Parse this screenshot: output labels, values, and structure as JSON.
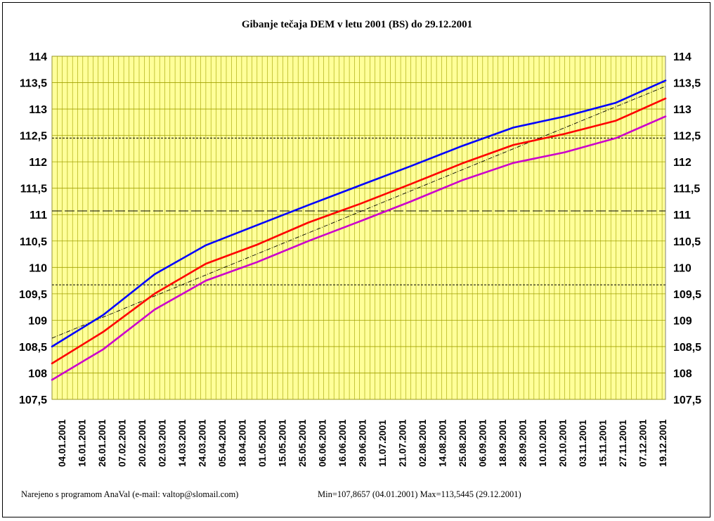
{
  "chart_data": {
    "type": "line",
    "title": "Gibanje tečaja DEM v letu 2001 (BS) do 29.12.2001",
    "xlabel": "",
    "ylabel": "",
    "ylim": [
      107.5,
      114
    ],
    "y_ticks": [
      "107,5",
      "108",
      "108,5",
      "109",
      "109,5",
      "110",
      "110,5",
      "111",
      "111,5",
      "112",
      "112,5",
      "113",
      "113,5",
      "114"
    ],
    "y_tick_values": [
      107.5,
      108,
      108.5,
      109,
      109.5,
      110,
      110.5,
      111,
      111.5,
      112,
      112.5,
      113,
      113.5,
      114
    ],
    "x_range": [
      "2001-01-04",
      "2001-12-29"
    ],
    "x_ticks": [
      "04.01.2001",
      "16.01.2001",
      "26.01.2001",
      "07.02.2001",
      "20.02.2001",
      "02.03.2001",
      "14.03.2001",
      "24.03.2001",
      "05.04.2001",
      "18.04.2001",
      "01.05.2001",
      "15.05.2001",
      "25.05.2001",
      "06.06.2001",
      "16.06.2001",
      "29.06.2001",
      "11.07.2001",
      "21.07.2001",
      "02.08.2001",
      "14.08.2001",
      "25.08.2001",
      "06.09.2001",
      "18.09.2001",
      "28.09.2001",
      "10.10.2001",
      "20.10.2001",
      "03.11.2001",
      "15.11.2001",
      "27.11.2001",
      "07.12.2001",
      "19.12.2001"
    ],
    "grid": true,
    "background_color": "#FFFF99",
    "grid_color": "#A0A000",
    "series": [
      {
        "color": "#0000FF",
        "x": [
          "2001-01-04",
          "2001-02-03",
          "2001-03-05",
          "2001-04-04",
          "2001-05-04",
          "2001-06-03",
          "2001-07-03",
          "2001-08-02",
          "2001-09-01",
          "2001-10-01",
          "2001-10-31",
          "2001-11-30",
          "2001-12-29"
        ],
        "values": [
          108.5,
          109.1,
          109.87,
          110.42,
          110.8,
          111.18,
          111.55,
          111.92,
          112.3,
          112.65,
          112.86,
          113.12,
          113.54
        ]
      },
      {
        "color": "#FF0000",
        "x": [
          "2001-01-04",
          "2001-02-03",
          "2001-03-05",
          "2001-04-04",
          "2001-05-04",
          "2001-06-03",
          "2001-07-03",
          "2001-08-02",
          "2001-09-01",
          "2001-10-01",
          "2001-10-31",
          "2001-11-30",
          "2001-12-29"
        ],
        "values": [
          108.18,
          108.78,
          109.5,
          110.07,
          110.43,
          110.85,
          111.2,
          111.58,
          111.97,
          112.32,
          112.53,
          112.78,
          113.2
        ]
      },
      {
        "color": "#CC00CC",
        "x": [
          "2001-01-04",
          "2001-02-03",
          "2001-03-05",
          "2001-04-04",
          "2001-05-04",
          "2001-06-03",
          "2001-07-03",
          "2001-08-02",
          "2001-09-01",
          "2001-10-01",
          "2001-10-31",
          "2001-11-30",
          "2001-12-29"
        ],
        "values": [
          107.87,
          108.45,
          109.2,
          109.75,
          110.1,
          110.5,
          110.87,
          111.25,
          111.65,
          111.98,
          112.18,
          112.45,
          112.86
        ]
      }
    ],
    "trend_line": {
      "color": "#000000",
      "x": [
        "2001-01-04",
        "2001-12-29"
      ],
      "values": [
        108.66,
        113.43
      ]
    },
    "reference_lines": [
      {
        "style": "dotted",
        "value": 112.45
      },
      {
        "style": "dashed",
        "value": 111.07
      },
      {
        "style": "dotted",
        "value": 109.67
      }
    ]
  },
  "footer": {
    "credit": "Narejeno s programom AnaVal (e-mail: valtop@slomail.com)",
    "minmax": "Min=107,8657 (04.01.2001) Max=113,5445 (29.12.2001)"
  }
}
